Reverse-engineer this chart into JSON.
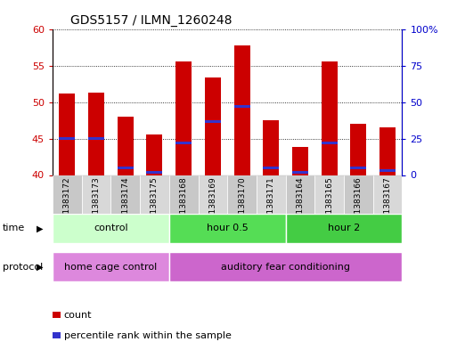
{
  "title": "GDS5157 / ILMN_1260248",
  "samples": [
    "GSM1383172",
    "GSM1383173",
    "GSM1383174",
    "GSM1383175",
    "GSM1383168",
    "GSM1383169",
    "GSM1383170",
    "GSM1383171",
    "GSM1383164",
    "GSM1383165",
    "GSM1383166",
    "GSM1383167"
  ],
  "counts": [
    51.2,
    51.4,
    48.0,
    45.6,
    55.6,
    53.4,
    57.8,
    47.6,
    43.9,
    55.6,
    47.1,
    46.6
  ],
  "percentile_ranks": [
    25,
    25,
    5,
    2,
    22,
    37,
    47,
    5,
    2,
    22,
    5,
    3
  ],
  "ymin": 40,
  "ymax": 60,
  "yticks": [
    40,
    45,
    50,
    55,
    60
  ],
  "right_yticks": [
    0,
    25,
    50,
    75,
    100
  ],
  "right_ylabels": [
    "0",
    "25",
    "50",
    "75",
    "100%"
  ],
  "bar_color": "#cc0000",
  "percentile_color": "#3333cc",
  "time_groups": [
    {
      "label": "control",
      "start": 0,
      "end": 4,
      "color": "#ccffcc"
    },
    {
      "label": "hour 0.5",
      "start": 4,
      "end": 8,
      "color": "#55dd55"
    },
    {
      "label": "hour 2",
      "start": 8,
      "end": 12,
      "color": "#44cc44"
    }
  ],
  "protocol_groups": [
    {
      "label": "home cage control",
      "start": 0,
      "end": 4,
      "color": "#dd88dd"
    },
    {
      "label": "auditory fear conditioning",
      "start": 4,
      "end": 12,
      "color": "#cc66cc"
    }
  ],
  "time_label": "time",
  "protocol_label": "protocol",
  "legend_count": "count",
  "legend_percentile": "percentile rank within the sample",
  "bar_width": 0.55,
  "tick_label_color_left": "#cc0000",
  "tick_label_color_right": "#0000cc",
  "xtick_bg": "#d0d0d0",
  "fig_bg": "#ffffff"
}
